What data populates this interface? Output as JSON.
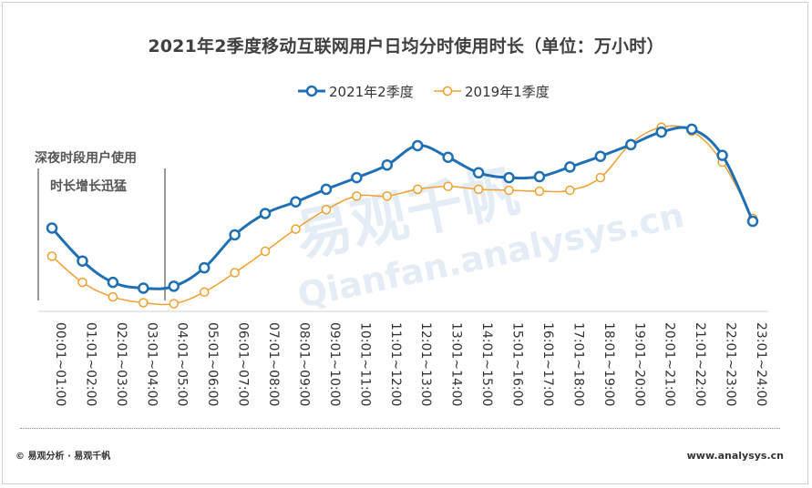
{
  "chart_data": {
    "type": "line",
    "title": "2021年2季度移动互联网用户日均分时使用时长（单位：万小时）",
    "categories": [
      "00:01~01:00",
      "01:01~02:00",
      "02:01~03:00",
      "03:01~04:00",
      "04:01~05:00",
      "05:01~06:00",
      "06:01~07:00",
      "07:01~08:00",
      "08:01~09:00",
      "09:01~10:00",
      "10:01~11:00",
      "11:01~12:00",
      "12:01~13:00",
      "13:01~14:00",
      "14:01~15:00",
      "15:01~16:00",
      "16:01~17:00",
      "17:01~18:00",
      "18:01~19:00",
      "19:01~20:00",
      "20:01~21:00",
      "21:01~22:00",
      "22:01~23:00",
      "23:01~24:00"
    ],
    "series": [
      {
        "name": "2021年2季度",
        "color": "#1f6fb5",
        "values": [
          100,
          66,
          44,
          38,
          40,
          59,
          93,
          115,
          127,
          140,
          152,
          165,
          185,
          173,
          157,
          152,
          153,
          163,
          174,
          186,
          199,
          202,
          175,
          107
        ]
      },
      {
        "name": "2019年1季度",
        "color": "#f0a030",
        "values": [
          71,
          44,
          29,
          23,
          22,
          34,
          54,
          76,
          99,
          119,
          133,
          133,
          140,
          143,
          140,
          139,
          138,
          139,
          152,
          187,
          204,
          200,
          168,
          110
        ]
      }
    ],
    "grid": false,
    "legend": "top-center"
  },
  "annotation": {
    "line1": "深夜时段用户使用",
    "line2": "时长增长迅猛"
  },
  "watermark": {
    "cn": "易观千帆",
    "url": "Qianfan.analysys.cn"
  },
  "footer": {
    "left": "© 易观分析 · 易观千帆",
    "right": "www.analysys.cn"
  }
}
